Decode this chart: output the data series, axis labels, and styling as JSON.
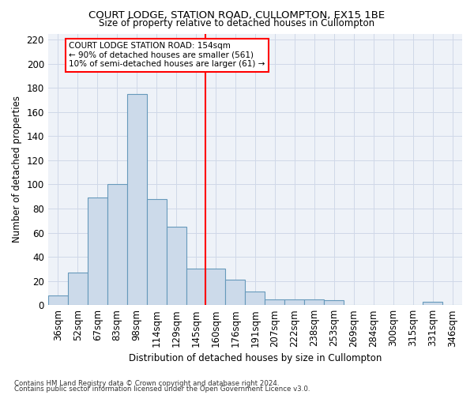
{
  "title": "COURT LODGE, STATION ROAD, CULLOMPTON, EX15 1BE",
  "subtitle": "Size of property relative to detached houses in Cullompton",
  "xlabel": "Distribution of detached houses by size in Cullompton",
  "ylabel": "Number of detached properties",
  "bar_color": "#ccdaea",
  "bar_edge_color": "#6699bb",
  "grid_color": "#d0d8e8",
  "bg_color": "#eef2f8",
  "categories": [
    "36sqm",
    "52sqm",
    "67sqm",
    "83sqm",
    "98sqm",
    "114sqm",
    "129sqm",
    "145sqm",
    "160sqm",
    "176sqm",
    "191sqm",
    "207sqm",
    "222sqm",
    "238sqm",
    "253sqm",
    "269sqm",
    "284sqm",
    "300sqm",
    "315sqm",
    "331sqm",
    "346sqm"
  ],
  "values": [
    8,
    27,
    89,
    100,
    175,
    88,
    65,
    30,
    30,
    21,
    11,
    5,
    5,
    5,
    4,
    0,
    0,
    0,
    0,
    3,
    0
  ],
  "ylim": [
    0,
    225
  ],
  "yticks": [
    0,
    20,
    40,
    60,
    80,
    100,
    120,
    140,
    160,
    180,
    200,
    220
  ],
  "vline_position": 7.5,
  "property_label": "COURT LODGE STATION ROAD: 154sqm",
  "annotation_line1": "← 90% of detached houses are smaller (561)",
  "annotation_line2": "10% of semi-detached houses are larger (61) →",
  "footnote1": "Contains HM Land Registry data © Crown copyright and database right 2024.",
  "footnote2": "Contains public sector information licensed under the Open Government Licence v3.0."
}
